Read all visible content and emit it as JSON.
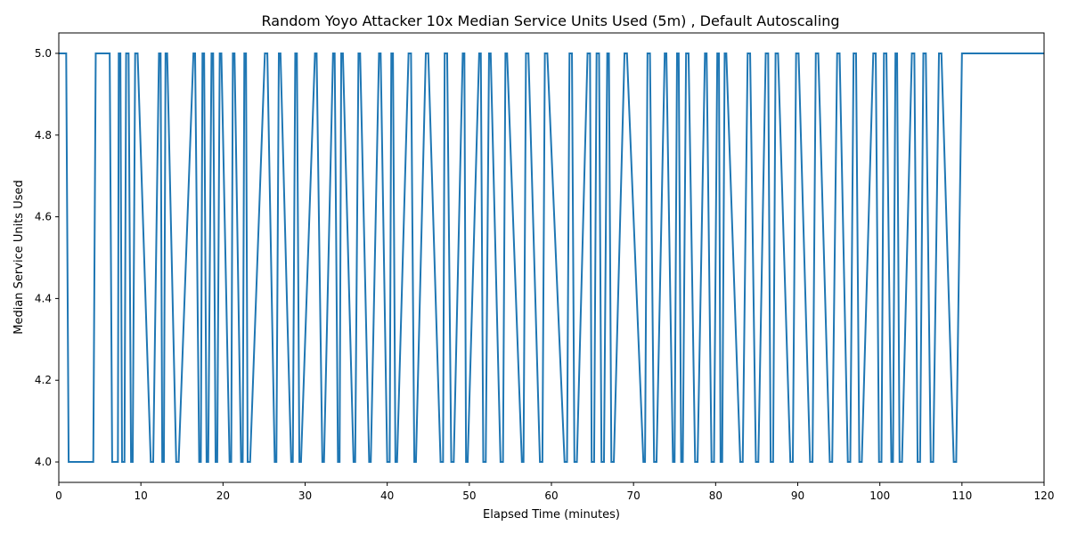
{
  "chart_data": {
    "type": "line",
    "title": "Random Yoyo Attacker 10x Median Service Units Used (5m) , Default Autoscaling",
    "xlabel": "Elapsed Time (minutes)",
    "ylabel": "Median Service Units Used",
    "xlim": [
      0,
      120
    ],
    "ylim": [
      3.95,
      5.05
    ],
    "xticks": [
      0,
      10,
      20,
      30,
      40,
      50,
      60,
      70,
      80,
      90,
      100,
      110,
      120
    ],
    "yticks": [
      4.0,
      4.2,
      4.4,
      4.6,
      4.8,
      5.0
    ],
    "ytick_labels": [
      "4.0",
      "4.2",
      "4.4",
      "4.6",
      "4.8",
      "5.0"
    ],
    "grid": false,
    "legend": "none",
    "color": "#1f77b4",
    "series": [
      {
        "x": [
          0,
          0.9,
          1.2,
          4.2,
          4.5,
          6.2,
          6.5,
          7.2,
          7.3,
          7.5,
          7.7,
          8.0,
          8.2,
          8.5,
          8.8,
          9.0,
          9.3,
          9.6,
          11.2,
          11.5,
          12.2,
          12.4,
          12.6,
          12.8,
          13.0,
          13.2,
          14.3,
          14.6,
          16.4,
          16.6,
          17.1,
          17.3,
          17.5,
          17.7,
          18.0,
          18.2,
          18.6,
          18.8,
          19.1,
          19.3,
          19.6,
          19.8,
          20.8,
          21.0,
          21.2,
          21.4,
          22.2,
          22.4,
          22.6,
          22.8,
          23.0,
          23.3,
          25.1,
          25.4,
          26.3,
          26.5,
          26.8,
          27.0,
          28.3,
          28.5,
          28.8,
          29.0,
          29.3,
          29.5,
          31.2,
          31.4,
          32.1,
          32.3,
          33.4,
          33.6,
          34.0,
          34.2,
          34.4,
          34.6,
          35.9,
          36.1,
          36.5,
          36.7,
          37.8,
          38.0,
          39.0,
          39.2,
          40.0,
          40.3,
          40.5,
          40.7,
          41.0,
          41.2,
          42.6,
          42.9,
          43.3,
          43.5,
          44.7,
          45.0,
          46.5,
          46.8,
          47.0,
          47.3,
          47.8,
          48.1,
          49.2,
          49.4,
          49.6,
          49.8,
          51.2,
          51.4,
          51.7,
          52.0,
          52.4,
          52.6,
          53.8,
          54.1,
          54.4,
          54.6,
          56.4,
          56.6,
          56.9,
          57.2,
          58.6,
          58.9,
          59.2,
          59.5,
          61.6,
          61.9,
          62.2,
          62.5,
          62.8,
          63.1,
          64.4,
          64.7,
          64.9,
          65.2,
          65.5,
          65.8,
          66.1,
          66.4,
          66.8,
          67.0,
          67.3,
          67.6,
          68.9,
          69.2,
          71.2,
          71.4,
          71.7,
          72.0,
          72.5,
          72.8,
          73.8,
          74.0,
          74.8,
          75.0,
          75.3,
          75.5,
          75.8,
          76.0,
          76.4,
          76.7,
          77.5,
          77.8,
          78.7,
          78.9,
          79.5,
          79.8,
          80.2,
          80.4,
          80.6,
          80.8,
          81.1,
          81.3,
          83.0,
          83.3,
          83.9,
          84.2,
          84.9,
          85.2,
          86.1,
          86.4,
          86.7,
          87.0,
          87.3,
          87.6,
          89.1,
          89.4,
          89.8,
          90.1,
          91.5,
          91.8,
          92.2,
          92.5,
          93.9,
          94.2,
          94.8,
          95.1,
          96.1,
          96.4,
          96.8,
          97.1,
          97.5,
          97.8,
          99.2,
          99.5,
          99.9,
          100.2,
          100.5,
          100.8,
          101.4,
          101.6,
          101.9,
          102.1,
          102.4,
          102.7,
          103.9,
          104.2,
          104.6,
          104.9,
          105.3,
          105.6,
          106.2,
          106.5,
          107.2,
          107.5,
          109.0,
          109.3,
          110.0,
          110.4,
          120
        ],
        "y": [
          5,
          5,
          4,
          4,
          5,
          5,
          4,
          4,
          5,
          5,
          4,
          4,
          5,
          5,
          4,
          4,
          5,
          5,
          4,
          4,
          5,
          5,
          4,
          4,
          5,
          5,
          4,
          4,
          5,
          5,
          4,
          4,
          5,
          5,
          4,
          4,
          5,
          5,
          4,
          4,
          5,
          5,
          4,
          4,
          5,
          5,
          4,
          4,
          5,
          5,
          4,
          4,
          5,
          5,
          4,
          4,
          5,
          5,
          4,
          4,
          5,
          5,
          4,
          4,
          5,
          5,
          4,
          4,
          5,
          5,
          4,
          4,
          5,
          5,
          4,
          4,
          5,
          5,
          4,
          4,
          5,
          5,
          4,
          4,
          5,
          5,
          4,
          4,
          5,
          5,
          4,
          4,
          5,
          5,
          4,
          4,
          5,
          5,
          4,
          4,
          5,
          5,
          4,
          4,
          5,
          5,
          4,
          4,
          5,
          5,
          4,
          4,
          5,
          5,
          4,
          4,
          5,
          5,
          4,
          4,
          5,
          5,
          4,
          4,
          5,
          5,
          4,
          4,
          5,
          5,
          4,
          4,
          5,
          5,
          4,
          4,
          5,
          5,
          4,
          4,
          5,
          5,
          4,
          4,
          5,
          5,
          4,
          4,
          5,
          5,
          4,
          4,
          5,
          5,
          4,
          4,
          5,
          5,
          4,
          4,
          5,
          5,
          4,
          4,
          5,
          5,
          4,
          4,
          5,
          5,
          4,
          4,
          5,
          5,
          4,
          4,
          5,
          5,
          4,
          4,
          5,
          5,
          4,
          4,
          5,
          5,
          4,
          4,
          5,
          5,
          4,
          4,
          5,
          5,
          4,
          4,
          5,
          5,
          4,
          4,
          5,
          5,
          4,
          4,
          5,
          5,
          4,
          4,
          5,
          5,
          4,
          4,
          5,
          5,
          4,
          4,
          5,
          5,
          4,
          4,
          5,
          5,
          4,
          4,
          5,
          5,
          5
        ]
      }
    ]
  }
}
